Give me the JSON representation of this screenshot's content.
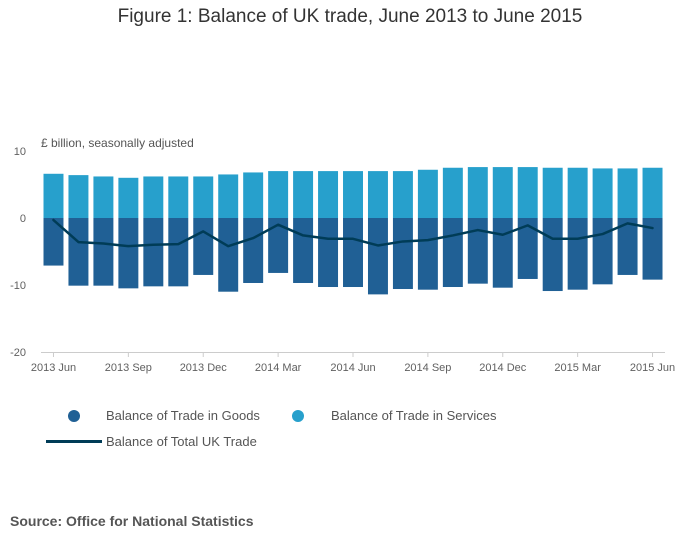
{
  "header": {
    "title": "Figure 1: Balance of UK trade, June 2013 to June 2015"
  },
  "chart_data": {
    "type": "bar",
    "stacked": true,
    "unit_label": "£ billion, seasonally adjusted",
    "ylim": [
      -20,
      10
    ],
    "yticks": [
      10,
      0,
      -10,
      -20
    ],
    "grid": false,
    "categories": [
      "2013 Jun",
      "2013 Jul",
      "2013 Aug",
      "2013 Sep",
      "2013 Oct",
      "2013 Nov",
      "2013 Dec",
      "2014 Jan",
      "2014 Feb",
      "2014 Mar",
      "2014 Apr",
      "2014 May",
      "2014 Jun",
      "2014 Jul",
      "2014 Aug",
      "2014 Sep",
      "2014 Oct",
      "2014 Nov",
      "2014 Dec",
      "2015 Jan",
      "2015 Feb",
      "2015 Mar",
      "2015 Apr",
      "2015 May",
      "2015 Jun"
    ],
    "tick_labels": [
      {
        "index": 0,
        "label": "2013 Jun"
      },
      {
        "index": 3,
        "label": "2013 Sep"
      },
      {
        "index": 6,
        "label": "2013 Dec"
      },
      {
        "index": 9,
        "label": "2014 Mar"
      },
      {
        "index": 12,
        "label": "2014 Jun"
      },
      {
        "index": 15,
        "label": "2014 Sep"
      },
      {
        "index": 18,
        "label": "2014 Dec"
      },
      {
        "index": 21,
        "label": "2015 Mar"
      },
      {
        "index": 24,
        "label": "2015 Jun"
      }
    ],
    "series": [
      {
        "name": "Balance of Trade in Goods",
        "kind": "bar",
        "color": "#206095",
        "values": [
          -7.1,
          -10.1,
          -10.1,
          -10.5,
          -10.2,
          -10.2,
          -8.5,
          -11.0,
          -9.7,
          -8.2,
          -9.7,
          -10.3,
          -10.3,
          -11.4,
          -10.6,
          -10.7,
          -10.3,
          -9.8,
          -10.4,
          -9.1,
          -10.9,
          -10.7,
          -9.9,
          -8.5,
          -9.2
        ]
      },
      {
        "name": "Balance of Trade in Services",
        "kind": "bar",
        "color": "#27a0cc",
        "values": [
          6.6,
          6.4,
          6.2,
          6.0,
          6.2,
          6.2,
          6.2,
          6.5,
          6.8,
          7.0,
          7.0,
          7.0,
          7.0,
          7.0,
          7.0,
          7.2,
          7.5,
          7.6,
          7.6,
          7.6,
          7.5,
          7.5,
          7.4,
          7.4,
          7.5
        ]
      },
      {
        "name": "Balance of Total UK Trade",
        "kind": "line",
        "color": "#003c57",
        "values": [
          -0.3,
          -3.6,
          -3.8,
          -4.2,
          -4.0,
          -3.9,
          -2.0,
          -4.2,
          -3.0,
          -1.0,
          -2.6,
          -3.1,
          -3.1,
          -4.1,
          -3.5,
          -3.3,
          -2.6,
          -1.8,
          -2.5,
          -1.1,
          -3.1,
          -3.1,
          -2.4,
          -0.8,
          -1.5
        ]
      }
    ]
  },
  "source": {
    "text": "Source: Office for National Statistics"
  }
}
